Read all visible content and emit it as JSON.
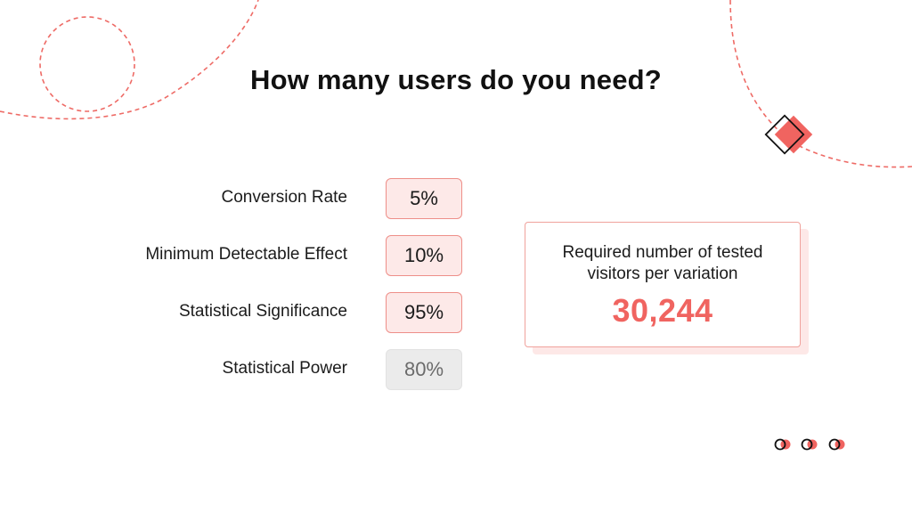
{
  "title": "How many users do you need?",
  "params": [
    {
      "label": "Conversion Rate",
      "value": "5%",
      "state": "active"
    },
    {
      "label": "Minimum Detectable Effect",
      "value": "10%",
      "state": "active"
    },
    {
      "label": "Statistical Significance",
      "value": "95%",
      "state": "active"
    },
    {
      "label": "Statistical Power",
      "value": "80%",
      "state": "inactive"
    }
  ],
  "result": {
    "label": "Required number of tested visitors per variation",
    "value": "30,244"
  },
  "colors": {
    "accent": "#f06460",
    "box_fill": "#fde9e8",
    "box_border": "#ee8f89",
    "inactive_fill": "#ebebeb",
    "text": "#111111"
  },
  "icons": [
    "diamond-icon",
    "dot-pair-icon"
  ]
}
